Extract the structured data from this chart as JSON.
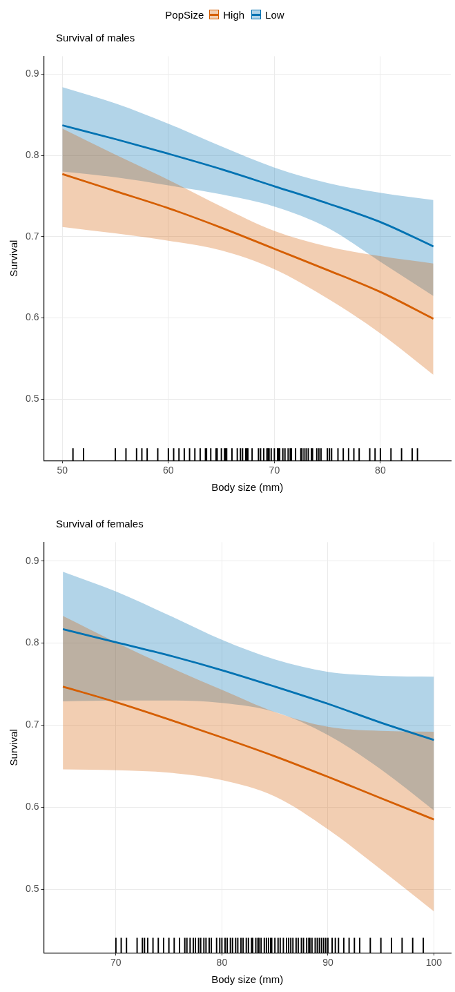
{
  "chart_data": [
    {
      "type": "line",
      "title": "Survival of males",
      "xlabel": "Body size (mm)",
      "ylabel": "Survival",
      "legend_title": "PopSize",
      "legend": "top",
      "grid": true,
      "line_style": "solid",
      "marker": "none",
      "x": [
        50,
        55,
        60,
        65,
        70,
        75,
        80,
        85
      ],
      "xlim": [
        48.25,
        86.65
      ],
      "xticks": [
        50,
        60,
        70,
        80
      ],
      "ylim": [
        0.4245,
        0.922
      ],
      "yticks": [
        0.5,
        0.6,
        0.7,
        0.8,
        0.9
      ],
      "series": [
        {
          "name": "High",
          "color": "#d55e00",
          "values": [
            0.777,
            0.756,
            0.735,
            0.711,
            0.685,
            0.659,
            0.632,
            0.599
          ],
          "lower": [
            0.712,
            0.704,
            0.695,
            0.683,
            0.66,
            0.624,
            0.581,
            0.53
          ],
          "upper": [
            0.833,
            0.801,
            0.77,
            0.737,
            0.707,
            0.688,
            0.676,
            0.667
          ]
        },
        {
          "name": "Low",
          "color": "#0072b2",
          "values": [
            0.837,
            0.82,
            0.802,
            0.783,
            0.762,
            0.741,
            0.718,
            0.688
          ],
          "lower": [
            0.78,
            0.773,
            0.763,
            0.752,
            0.737,
            0.711,
            0.669,
            0.627
          ],
          "upper": [
            0.884,
            0.864,
            0.839,
            0.811,
            0.785,
            0.766,
            0.754,
            0.745
          ]
        },
        {
          "type": "bar",
          "color": "#000000",
          "x": [
            51.0,
            52.0,
            55.0,
            56.0,
            57.0,
            57.5,
            58.0,
            59.0,
            60.0,
            60.5,
            61.0,
            61.5,
            62.0,
            62.5,
            63.0,
            63.5,
            63.6,
            64.0,
            64.5,
            64.6,
            65.0,
            65.3,
            65.4,
            65.5,
            66.0,
            66.5,
            66.8,
            67.0,
            67.3,
            67.4,
            67.5,
            67.9,
            68.5,
            68.7,
            69.0,
            69.3,
            69.4,
            69.5,
            69.7,
            70.0,
            70.3,
            70.4,
            70.5,
            70.8,
            71.0,
            71.3,
            71.5,
            71.6,
            72.0,
            72.5,
            72.6,
            72.8,
            73.0,
            73.2,
            73.5,
            73.6,
            74.0,
            74.2,
            74.4,
            75.0,
            75.2,
            75.4,
            76.0,
            76.5,
            77.0,
            77.5,
            78.0,
            79.0,
            79.5,
            80.0,
            81.0,
            82.0,
            83.0,
            83.5
          ],
          "values": [
            0.015,
            0.015,
            0.015,
            0.015,
            0.015,
            0.015,
            0.015,
            0.015,
            0.015,
            0.015,
            0.015,
            0.015,
            0.015,
            0.015,
            0.015,
            0.015,
            0.015,
            0.015,
            0.015,
            0.015,
            0.015,
            0.015,
            0.015,
            0.015,
            0.015,
            0.015,
            0.015,
            0.015,
            0.015,
            0.015,
            0.015,
            0.015,
            0.015,
            0.015,
            0.015,
            0.015,
            0.015,
            0.015,
            0.015,
            0.015,
            0.015,
            0.015,
            0.015,
            0.015,
            0.015,
            0.015,
            0.015,
            0.015,
            0.015,
            0.015,
            0.015,
            0.015,
            0.015,
            0.015,
            0.015,
            0.015,
            0.015,
            0.015,
            0.015,
            0.015,
            0.015,
            0.015,
            0.015,
            0.015,
            0.015,
            0.015,
            0.015,
            0.015,
            0.015,
            0.015,
            0.015,
            0.015,
            0.015,
            0.015
          ],
          "base": [
            0.4245,
            0.4245,
            0.4245,
            0.4245,
            0.4245,
            0.4245,
            0.4245,
            0.4245,
            0.4245,
            0.4245,
            0.4245,
            0.4245,
            0.4245,
            0.4245,
            0.4245,
            0.4245,
            0.4245,
            0.4245,
            0.4245,
            0.4245,
            0.4245,
            0.4245,
            0.4245,
            0.4245,
            0.4245,
            0.4245,
            0.4245,
            0.4245,
            0.4245,
            0.4245,
            0.4245,
            0.4245,
            0.4245,
            0.4245,
            0.4245,
            0.4245,
            0.4245,
            0.4245,
            0.4245,
            0.4245,
            0.4245,
            0.4245,
            0.4245,
            0.4245,
            0.4245,
            0.4245,
            0.4245,
            0.4245,
            0.4245,
            0.4245,
            0.4245,
            0.4245,
            0.4245,
            0.4245,
            0.4245,
            0.4245,
            0.4245,
            0.4245,
            0.4245,
            0.4245,
            0.4245,
            0.4245,
            0.4245,
            0.4245,
            0.4245,
            0.4245,
            0.4245,
            0.4245,
            0.4245,
            0.4245,
            0.4245,
            0.4245,
            0.4245,
            0.4245
          ]
        }
      ]
    },
    {
      "type": "line",
      "title": "Survival of females",
      "xlabel": "Body size (mm)",
      "ylabel": "Survival",
      "grid": true,
      "line_style": "solid",
      "marker": "none",
      "x": [
        65,
        70,
        75,
        80,
        85,
        90,
        95,
        100
      ],
      "xlim": [
        63.2,
        101.6
      ],
      "xticks": [
        70,
        80,
        90,
        100
      ],
      "ylim": [
        0.4225,
        0.923
      ],
      "yticks": [
        0.5,
        0.6,
        0.7,
        0.8,
        0.9
      ],
      "series": [
        {
          "color": "#d55e00",
          "values": [
            0.747,
            0.728,
            0.707,
            0.685,
            0.662,
            0.637,
            0.611,
            0.585
          ],
          "lower": [
            0.646,
            0.645,
            0.642,
            0.633,
            0.613,
            0.573,
            0.524,
            0.473
          ],
          "upper": [
            0.833,
            0.801,
            0.771,
            0.743,
            0.716,
            0.698,
            0.693,
            0.692
          ]
        },
        {
          "color": "#0072b2",
          "values": [
            0.817,
            0.801,
            0.785,
            0.767,
            0.747,
            0.726,
            0.703,
            0.682
          ],
          "lower": [
            0.729,
            0.73,
            0.73,
            0.727,
            0.716,
            0.688,
            0.646,
            0.596
          ],
          "upper": [
            0.887,
            0.863,
            0.834,
            0.804,
            0.78,
            0.765,
            0.76,
            0.759
          ]
        },
        {
          "type": "bar",
          "color": "#000000",
          "x": [
            70,
            70.5,
            71,
            72,
            72.5,
            72.7,
            73,
            73.5,
            74,
            74.5,
            75,
            75.5,
            76,
            76.5,
            76.7,
            77,
            77.3,
            77.5,
            77.8,
            78,
            78.3,
            78.5,
            78.8,
            79,
            79.5,
            79.8,
            80,
            80.3,
            80.5,
            80.8,
            81,
            81.3,
            81.5,
            81.8,
            82,
            82.3,
            82.5,
            82.8,
            82.9,
            83.2,
            83.4,
            83.5,
            83.7,
            84,
            84.2,
            84.4,
            84.6,
            84.7,
            85,
            85.3,
            85.5,
            85.8,
            86.1,
            86.3,
            86.5,
            86.7,
            87,
            87.2,
            87.5,
            87.7,
            88,
            88.2,
            88.3,
            88.5,
            88.8,
            89,
            89.2,
            89.4,
            89.6,
            89.8,
            90,
            90.4,
            90.7,
            91,
            91.5,
            92,
            92.5,
            93,
            94,
            95,
            96,
            97,
            98,
            99
          ],
          "values": [
            0.018,
            0.018,
            0.018,
            0.018,
            0.018,
            0.018,
            0.018,
            0.018,
            0.018,
            0.018,
            0.018,
            0.018,
            0.018,
            0.018,
            0.018,
            0.018,
            0.018,
            0.018,
            0.018,
            0.018,
            0.018,
            0.018,
            0.018,
            0.018,
            0.018,
            0.018,
            0.018,
            0.018,
            0.018,
            0.018,
            0.018,
            0.018,
            0.018,
            0.018,
            0.018,
            0.018,
            0.018,
            0.018,
            0.018,
            0.018,
            0.018,
            0.018,
            0.018,
            0.018,
            0.018,
            0.018,
            0.018,
            0.018,
            0.018,
            0.018,
            0.018,
            0.018,
            0.018,
            0.018,
            0.018,
            0.018,
            0.018,
            0.018,
            0.018,
            0.018,
            0.018,
            0.018,
            0.018,
            0.018,
            0.018,
            0.018,
            0.018,
            0.018,
            0.018,
            0.018,
            0.018,
            0.018,
            0.018,
            0.018,
            0.018,
            0.018,
            0.018,
            0.018,
            0.018,
            0.018,
            0.018,
            0.018,
            0.018,
            0.018
          ],
          "base": [
            0.4225,
            0.4225,
            0.4225,
            0.4225,
            0.4225,
            0.4225,
            0.4225,
            0.4225,
            0.4225,
            0.4225,
            0.4225,
            0.4225,
            0.4225,
            0.4225,
            0.4225,
            0.4225,
            0.4225,
            0.4225,
            0.4225,
            0.4225,
            0.4225,
            0.4225,
            0.4225,
            0.4225,
            0.4225,
            0.4225,
            0.4225,
            0.4225,
            0.4225,
            0.4225,
            0.4225,
            0.4225,
            0.4225,
            0.4225,
            0.4225,
            0.4225,
            0.4225,
            0.4225,
            0.4225,
            0.4225,
            0.4225,
            0.4225,
            0.4225,
            0.4225,
            0.4225,
            0.4225,
            0.4225,
            0.4225,
            0.4225,
            0.4225,
            0.4225,
            0.4225,
            0.4225,
            0.4225,
            0.4225,
            0.4225,
            0.4225,
            0.4225,
            0.4225,
            0.4225,
            0.4225,
            0.4225,
            0.4225,
            0.4225,
            0.4225,
            0.4225,
            0.4225,
            0.4225,
            0.4225,
            0.4225,
            0.4225,
            0.4225,
            0.4225,
            0.4225,
            0.4225,
            0.4225,
            0.4225,
            0.4225,
            0.4225,
            0.4225,
            0.4225,
            0.4225,
            0.4225,
            0.4225
          ]
        }
      ]
    }
  ]
}
